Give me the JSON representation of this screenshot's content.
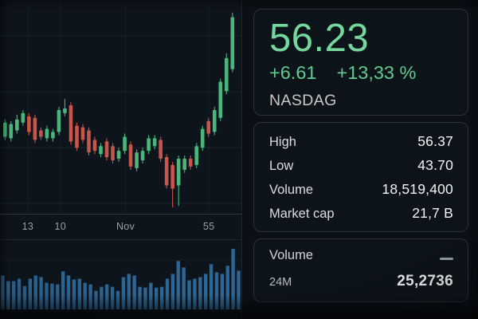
{
  "panel": {
    "price_card": {
      "price": "56.23",
      "change_abs": "+6.61",
      "change_pct": "+13,33 %",
      "symbol": "NASDAG"
    },
    "stats_card": {
      "rows": [
        {
          "label": "High",
          "value": "56.37"
        },
        {
          "label": "Low",
          "value": "43.70"
        },
        {
          "label": "Volume",
          "value": "18,519,400"
        },
        {
          "label": "Market cap",
          "value": "21,7 B"
        }
      ]
    },
    "volume_card": {
      "title": "Volume",
      "collapse_icon": "minus-dash",
      "period": "24M",
      "value": "25,2736"
    }
  },
  "chart_data": [
    {
      "type": "candlestick",
      "title": "",
      "price_range": [
        43.4,
        57.0
      ],
      "grid": true,
      "x_ticks": [
        {
          "label": "13",
          "pos": 0.115
        },
        {
          "label": "10",
          "pos": 0.25
        },
        {
          "label": "Nov",
          "pos": 0.52
        },
        {
          "label": "55",
          "pos": 0.865
        }
      ],
      "candles": [
        {
          "o": 48.3,
          "h": 49.4,
          "l": 48.1,
          "c": 49.2
        },
        {
          "o": 48.2,
          "h": 49.3,
          "l": 48.0,
          "c": 49.1
        },
        {
          "o": 48.7,
          "h": 49.7,
          "l": 48.5,
          "c": 49.4
        },
        {
          "o": 49.2,
          "h": 50.0,
          "l": 49.0,
          "c": 49.8
        },
        {
          "o": 49.6,
          "h": 49.8,
          "l": 48.4,
          "c": 48.6
        },
        {
          "o": 49.5,
          "h": 49.7,
          "l": 47.9,
          "c": 48.1
        },
        {
          "o": 48.7,
          "h": 48.9,
          "l": 48.1,
          "c": 48.3
        },
        {
          "o": 48.2,
          "h": 49.0,
          "l": 48.0,
          "c": 48.8
        },
        {
          "o": 48.2,
          "h": 48.8,
          "l": 48.0,
          "c": 48.6
        },
        {
          "o": 48.6,
          "h": 50.2,
          "l": 48.4,
          "c": 50.0
        },
        {
          "o": 49.8,
          "h": 50.7,
          "l": 49.6,
          "c": 50.1
        },
        {
          "o": 50.3,
          "h": 50.5,
          "l": 47.8,
          "c": 48.0
        },
        {
          "o": 49.0,
          "h": 49.2,
          "l": 47.4,
          "c": 47.6
        },
        {
          "o": 48.9,
          "h": 49.1,
          "l": 47.9,
          "c": 48.1
        },
        {
          "o": 48.7,
          "h": 48.9,
          "l": 47.1,
          "c": 47.3
        },
        {
          "o": 48.1,
          "h": 48.3,
          "l": 47.2,
          "c": 47.4
        },
        {
          "o": 47.2,
          "h": 47.9,
          "l": 47.0,
          "c": 47.7
        },
        {
          "o": 48.0,
          "h": 48.2,
          "l": 46.8,
          "c": 47.0
        },
        {
          "o": 47.7,
          "h": 47.9,
          "l": 46.6,
          "c": 46.8
        },
        {
          "o": 46.9,
          "h": 47.6,
          "l": 46.7,
          "c": 47.4
        },
        {
          "o": 47.4,
          "h": 48.5,
          "l": 47.2,
          "c": 48.3
        },
        {
          "o": 47.8,
          "h": 48.0,
          "l": 46.2,
          "c": 46.4
        },
        {
          "o": 46.3,
          "h": 47.5,
          "l": 46.1,
          "c": 47.3
        },
        {
          "o": 46.8,
          "h": 47.6,
          "l": 46.6,
          "c": 47.4
        },
        {
          "o": 47.4,
          "h": 48.4,
          "l": 47.2,
          "c": 48.2
        },
        {
          "o": 47.7,
          "h": 48.4,
          "l": 47.5,
          "c": 48.2
        },
        {
          "o": 48.1,
          "h": 48.3,
          "l": 46.7,
          "c": 46.9
        },
        {
          "o": 47.0,
          "h": 47.2,
          "l": 45.0,
          "c": 45.2
        },
        {
          "o": 46.5,
          "h": 46.7,
          "l": 43.8,
          "c": 45.0
        },
        {
          "o": 45.2,
          "h": 47.1,
          "l": 43.9,
          "c": 46.9
        },
        {
          "o": 46.2,
          "h": 47.1,
          "l": 46.0,
          "c": 46.9
        },
        {
          "o": 46.9,
          "h": 47.1,
          "l": 46.2,
          "c": 46.4
        },
        {
          "o": 46.5,
          "h": 47.9,
          "l": 46.3,
          "c": 47.7
        },
        {
          "o": 47.6,
          "h": 49.0,
          "l": 47.4,
          "c": 48.8
        },
        {
          "o": 49.3,
          "h": 49.5,
          "l": 48.3,
          "c": 48.5
        },
        {
          "o": 48.6,
          "h": 50.2,
          "l": 48.4,
          "c": 50.0
        },
        {
          "o": 49.5,
          "h": 52.0,
          "l": 49.3,
          "c": 51.8
        },
        {
          "o": 51.2,
          "h": 53.6,
          "l": 51.0,
          "c": 53.3
        },
        {
          "o": 52.6,
          "h": 56.2,
          "l": 52.4,
          "c": 55.9
        }
      ]
    },
    {
      "type": "bar",
      "name": "volume",
      "values": [
        42,
        35,
        35,
        38,
        29,
        38,
        42,
        40,
        33,
        32,
        31,
        47,
        42,
        37,
        38,
        33,
        31,
        23,
        28,
        31,
        28,
        23,
        40,
        44,
        42,
        28,
        27,
        33,
        27,
        28,
        38,
        44,
        60,
        52,
        36,
        38,
        40,
        44,
        56,
        46,
        44,
        54,
        75,
        48
      ]
    }
  ],
  "colors": {
    "accent_green": "#74d89e",
    "change_green": "#5fcb8e",
    "candle_up": "#4bb57c",
    "candle_down": "#c9544a",
    "volume_bar": "#2d6694",
    "grid_line": "rgba(140,165,190,0.10)",
    "axis_text": "#97a0a8",
    "text_primary": "#f1f3f4",
    "text_secondary": "#d8dcdf",
    "symbol_text": "#cdc6c4",
    "card_border": "#29313a",
    "background": "#0c1319"
  }
}
